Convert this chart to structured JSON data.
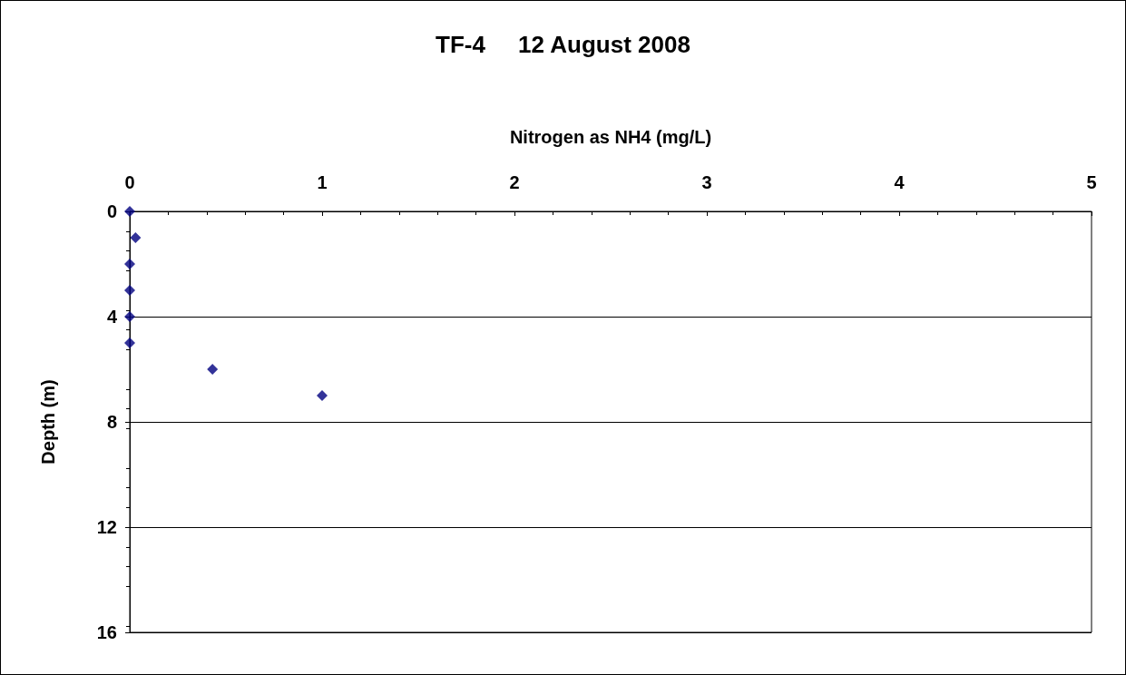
{
  "chart_data": {
    "type": "scatter",
    "title": "TF-4     12 August 2008",
    "xlabel": "Nitrogen as NH4 (mg/L)",
    "ylabel": "Depth (m)",
    "x": [
      0,
      0.03,
      0,
      0,
      0,
      0,
      0.43,
      1.0
    ],
    "series": [
      {
        "color": "#000080",
        "values": [
          0,
          1,
          2,
          3,
          4,
          5,
          6,
          7
        ]
      }
    ],
    "xlim": [
      0,
      5
    ],
    "xticks": [
      0,
      1,
      2,
      3,
      4,
      5
    ],
    "ylim": [
      16,
      0
    ],
    "yticks": [
      0,
      4,
      8,
      12,
      16
    ],
    "grid": "y",
    "marker": "diamond"
  }
}
